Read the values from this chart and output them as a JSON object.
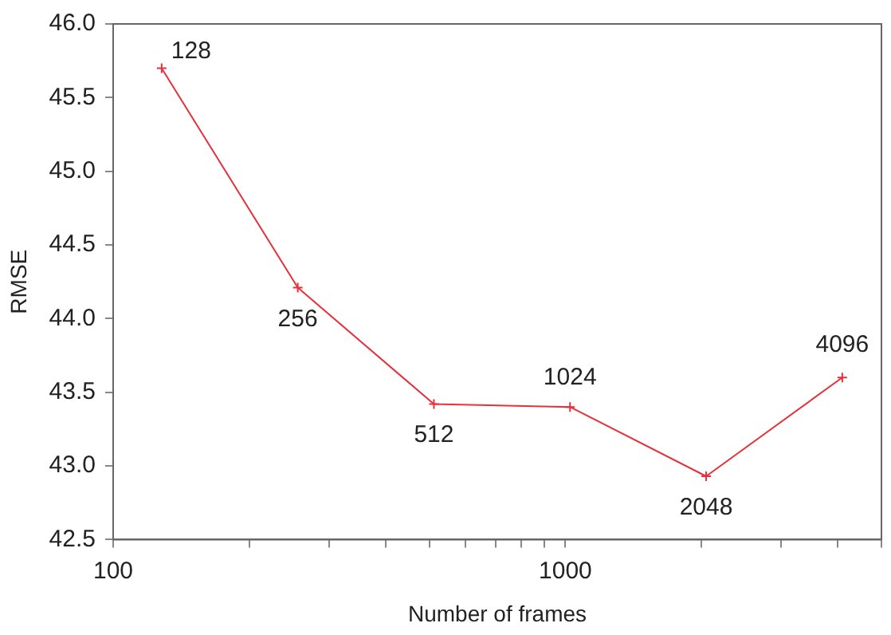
{
  "chart_data": {
    "type": "line",
    "xlabel": "Number of frames",
    "ylabel": "RMSE",
    "log": "x",
    "x": [
      128,
      256,
      512,
      1024,
      2048,
      4096
    ],
    "series": [
      {
        "color": "#e8303a",
        "values": [
          45.7,
          44.21,
          43.42,
          43.4,
          42.93,
          43.6
        ]
      }
    ],
    "xlim": [
      100,
      5000
    ],
    "xticks": [
      100,
      {
        "value": 200,
        "label": null
      },
      {
        "value": 300,
        "label": null
      },
      {
        "value": 400,
        "label": null
      },
      {
        "value": 500,
        "label": null
      },
      {
        "value": 600,
        "label": null
      },
      {
        "value": 700,
        "label": null
      },
      {
        "value": 800,
        "label": null
      },
      {
        "value": 900,
        "label": null
      },
      1000,
      {
        "value": 2000,
        "label": null
      },
      {
        "value": 3000,
        "label": null
      },
      {
        "value": 4000,
        "label": null
      },
      {
        "value": 5000,
        "label": null
      }
    ],
    "ylim": [
      42.5,
      46
    ],
    "yticks": [
      {
        "value": 42.5,
        "label": "42.5"
      },
      {
        "value": 43,
        "label": "43.0"
      },
      {
        "value": 43.5,
        "label": "43.5"
      },
      {
        "value": 44,
        "label": "44.0"
      },
      {
        "value": 44.5,
        "label": "44.5"
      },
      {
        "value": 45,
        "label": "45.0"
      },
      {
        "value": 45.5,
        "label": "45.5"
      },
      {
        "value": 46,
        "label": "46.0"
      }
    ],
    "marker": "cross",
    "line_style": "solid",
    "grid": false,
    "legend": false,
    "annotations": [
      {
        "text": "128",
        "x": 128,
        "y": 45.7
      },
      {
        "text": "256",
        "x": 256,
        "y": 44.21
      },
      {
        "text": "512",
        "x": 512,
        "y": 43.42
      },
      {
        "text": "1024",
        "x": 1024,
        "y": 43.4
      },
      {
        "text": "2048",
        "x": 2048,
        "y": 42.93
      },
      {
        "text": "4096",
        "x": 4096,
        "y": 43.6
      }
    ]
  }
}
